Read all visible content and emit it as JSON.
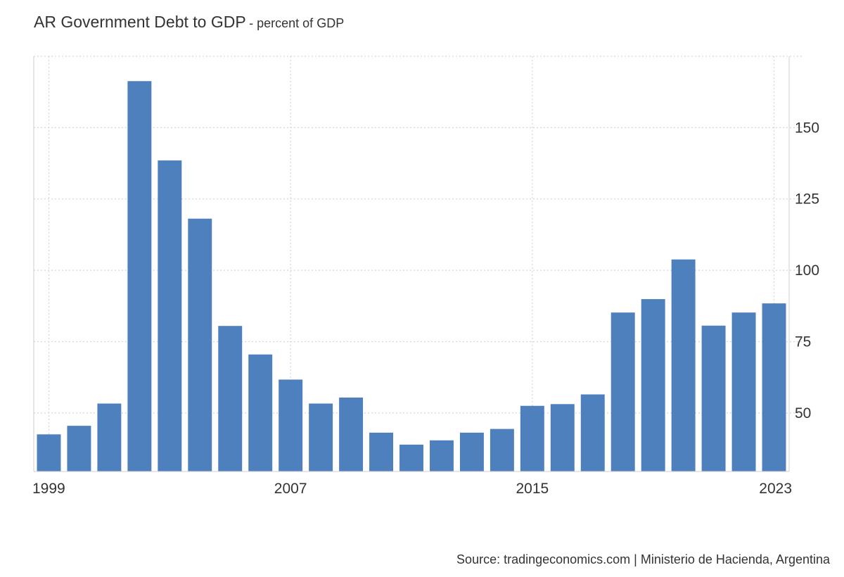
{
  "header": {
    "title": "AR Government Debt to GDP",
    "subtitle": "- percent of GDP"
  },
  "footer": {
    "source": "Source: tradingeconomics.com | Ministerio de Hacienda, Argentina"
  },
  "colors": {
    "bar": "#4d80bd",
    "grid": "#d6d6d6",
    "axis": "#cfcfcf",
    "text": "#333333"
  },
  "chart_data": {
    "type": "bar",
    "title": "AR Government Debt to GDP",
    "subtitle": "- percent of GDP",
    "xlabel": "",
    "ylabel": "",
    "x": [
      1999,
      2000,
      2001,
      2002,
      2003,
      2004,
      2005,
      2006,
      2007,
      2008,
      2009,
      2010,
      2011,
      2012,
      2013,
      2014,
      2015,
      2016,
      2017,
      2018,
      2019,
      2020,
      2021,
      2022,
      2023
    ],
    "values": [
      42.5,
      45.5,
      53.3,
      166.3,
      138.5,
      118.1,
      80.5,
      70.5,
      61.7,
      53.3,
      55.4,
      43.1,
      38.9,
      40.4,
      43.1,
      44.4,
      52.5,
      53.1,
      56.5,
      85.2,
      89.9,
      103.8,
      80.6,
      85.2,
      88.4
    ],
    "x_tick_labels": [
      "1999",
      "2007",
      "2015",
      "2023"
    ],
    "y_tick_labels": [
      "50",
      "75",
      "100",
      "125",
      "150"
    ],
    "y_ticks": [
      50,
      75,
      100,
      125,
      150
    ],
    "ylim": [
      29.5,
      175
    ],
    "y_axis_position": "right",
    "grid": true
  }
}
